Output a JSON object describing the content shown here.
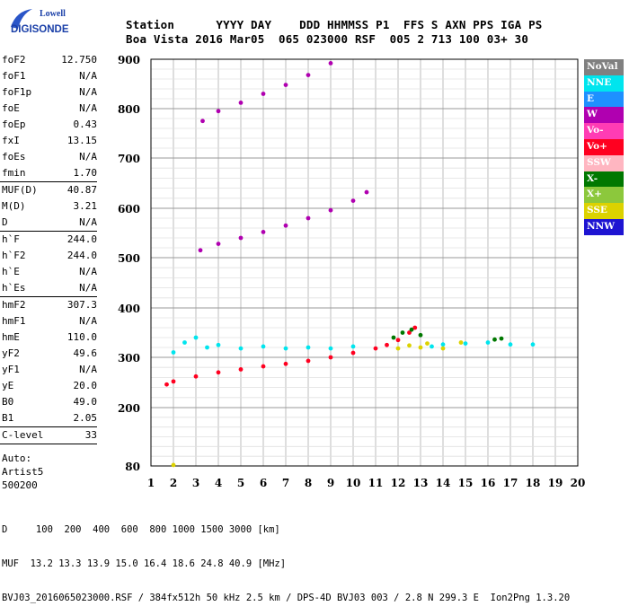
{
  "logo": {
    "line1": "Lowell",
    "line2": "DIGISONDE"
  },
  "header": {
    "line1": "Station      YYYY DAY    DDD HHMMSS P1  FFS S AXN PPS IGA PS",
    "line2": "Boa Vista 2016 Mar05  065 023000 RSF  005 2 713 100 03+ 30"
  },
  "sidebar": {
    "groups": [
      [
        [
          "foF2",
          "12.750"
        ],
        [
          "foF1",
          "N/A"
        ],
        [
          "foF1p",
          "N/A"
        ],
        [
          "foE",
          "N/A"
        ],
        [
          "foEp",
          "0.43"
        ],
        [
          "fxI",
          "13.15"
        ],
        [
          "foEs",
          "N/A"
        ],
        [
          "fmin",
          "1.70"
        ]
      ],
      [
        [
          "MUF(D)",
          "40.87"
        ],
        [
          "M(D)",
          "3.21"
        ],
        [
          "D",
          "N/A"
        ]
      ],
      [
        [
          "h`F",
          "244.0"
        ],
        [
          "h`F2",
          "244.0"
        ],
        [
          "h`E",
          "N/A"
        ],
        [
          "h`Es",
          "N/A"
        ]
      ],
      [
        [
          "hmF2",
          "307.3"
        ],
        [
          "hmF1",
          "N/A"
        ],
        [
          "hmE",
          "110.0"
        ],
        [
          "yF2",
          "49.6"
        ],
        [
          "yF1",
          "N/A"
        ],
        [
          "yE",
          "20.0"
        ],
        [
          "B0",
          "49.0"
        ],
        [
          "B1",
          "2.05"
        ]
      ],
      [
        [
          "C-level",
          "33"
        ]
      ]
    ],
    "auto_lines": [
      "Auto:",
      "Artist5",
      "500200"
    ]
  },
  "legend": [
    {
      "label": "NoVal",
      "color": "#808080"
    },
    {
      "label": "NNE",
      "color": "#00e5ee"
    },
    {
      "label": "E",
      "color": "#1e90ff"
    },
    {
      "label": "W",
      "color": "#b000b0"
    },
    {
      "label": "Vo-",
      "color": "#ff3cb4"
    },
    {
      "label": "Vo+",
      "color": "#ff0020"
    },
    {
      "label": "SSW",
      "color": "#ffb6c1"
    },
    {
      "label": "X-",
      "color": "#007800"
    },
    {
      "label": "X+",
      "color": "#8cc83c"
    },
    {
      "label": "SSE",
      "color": "#dcd200"
    },
    {
      "label": "NNW",
      "color": "#1e14d2"
    }
  ],
  "footer": {
    "line1": "D     100  200  400  600  800 1000 1500 3000 [km]",
    "line2": "MUF  13.2 13.3 13.9 15.0 16.4 18.6 24.8 40.9 [MHz]",
    "line3": "BVJ03_2016065023000.RSF / 384fx512h 50 kHz 2.5 km / DPS-4D BVJ03 003 / 2.8 N 299.3 E  Ion2Png 1.3.20"
  },
  "chart_data": {
    "type": "scatter",
    "xlim": [
      1,
      20
    ],
    "ylim": [
      80,
      900
    ],
    "x_ticks": [
      1,
      2,
      3,
      4,
      5,
      6,
      7,
      8,
      9,
      10,
      11,
      12,
      13,
      14,
      15,
      16,
      17,
      18,
      19,
      20
    ],
    "y_ticks": [
      80,
      200,
      300,
      400,
      500,
      600,
      700,
      800,
      900
    ],
    "grid": true,
    "legend_position": "right",
    "series": [
      {
        "name": "Vo+",
        "color": "#ff0020",
        "values": [
          [
            1.7,
            246
          ],
          [
            2.0,
            252
          ],
          [
            3.0,
            262
          ],
          [
            4.0,
            270
          ],
          [
            5.0,
            276
          ],
          [
            6.0,
            282
          ],
          [
            7.0,
            287
          ],
          [
            8.0,
            293
          ],
          [
            9.0,
            300
          ],
          [
            10.0,
            309
          ],
          [
            11.0,
            318
          ],
          [
            11.5,
            325
          ],
          [
            12.0,
            335
          ],
          [
            12.5,
            350
          ],
          [
            12.75,
            360
          ]
        ]
      },
      {
        "name": "W",
        "color": "#b000b0",
        "values": [
          [
            3.2,
            515
          ],
          [
            4.0,
            528
          ],
          [
            5.0,
            540
          ],
          [
            6.0,
            552
          ],
          [
            7.0,
            565
          ],
          [
            8.0,
            580
          ],
          [
            9.0,
            596
          ],
          [
            10.0,
            615
          ],
          [
            10.6,
            632
          ],
          [
            3.3,
            775
          ],
          [
            4.0,
            795
          ],
          [
            5.0,
            812
          ],
          [
            6.0,
            830
          ],
          [
            7.0,
            848
          ],
          [
            8.0,
            868
          ],
          [
            9.0,
            892
          ]
        ]
      },
      {
        "name": "NNE",
        "color": "#00e5ee",
        "values": [
          [
            2.0,
            310
          ],
          [
            2.5,
            330
          ],
          [
            3.0,
            340
          ],
          [
            3.5,
            320
          ],
          [
            4.0,
            325
          ],
          [
            5.0,
            318
          ],
          [
            6.0,
            322
          ],
          [
            7.0,
            318
          ],
          [
            8.0,
            320
          ],
          [
            9.0,
            318
          ],
          [
            10.0,
            322
          ],
          [
            13.5,
            322
          ],
          [
            14.0,
            326
          ],
          [
            15.0,
            328
          ],
          [
            16.0,
            330
          ],
          [
            17.0,
            326
          ],
          [
            18.0,
            326
          ]
        ]
      },
      {
        "name": "X-",
        "color": "#007800",
        "values": [
          [
            11.8,
            340
          ],
          [
            12.2,
            350
          ],
          [
            12.6,
            356
          ],
          [
            13.0,
            345
          ],
          [
            16.3,
            336
          ],
          [
            16.6,
            338
          ]
        ]
      },
      {
        "name": "SSE",
        "color": "#dcd200",
        "values": [
          [
            12.0,
            318
          ],
          [
            12.5,
            324
          ],
          [
            13.0,
            320
          ],
          [
            13.3,
            328
          ],
          [
            14.0,
            318
          ],
          [
            14.8,
            330
          ],
          [
            2.0,
            82
          ]
        ]
      }
    ]
  }
}
